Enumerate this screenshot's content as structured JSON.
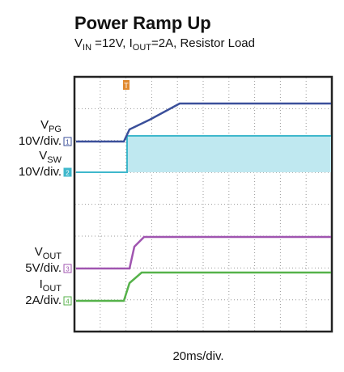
{
  "header": {
    "title": "Power Ramp Up",
    "subtitle": [
      "V",
      "IN",
      " =12V, I",
      "OUT",
      "=2A, Resistor Load"
    ]
  },
  "trigger": "T",
  "channels": [
    {
      "name": [
        "V",
        "PG"
      ],
      "scale": "10V/div.",
      "marker": "1"
    },
    {
      "name": [
        "V",
        "SW"
      ],
      "scale": "10V/div.",
      "marker": "2"
    },
    {
      "name": [
        "V",
        "OUT"
      ],
      "scale": "5V/div.",
      "marker": "3"
    },
    {
      "name": [
        "I",
        "OUT"
      ],
      "scale": "2A/div.",
      "marker": "4"
    }
  ],
  "time_scale": "20ms/div."
}
